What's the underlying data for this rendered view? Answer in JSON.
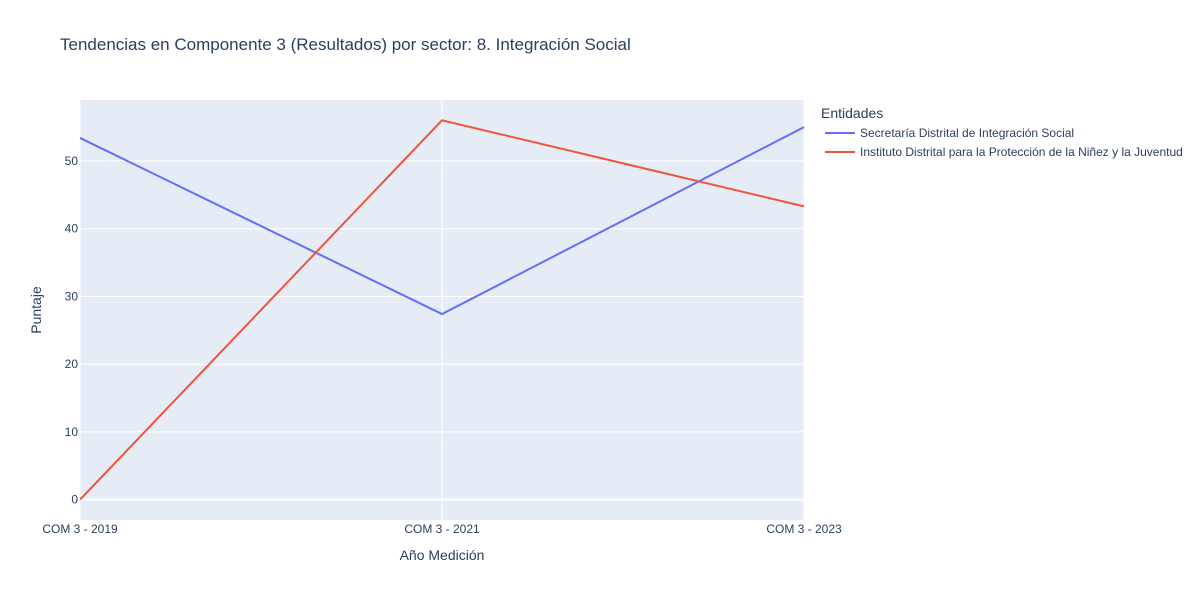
{
  "chart_data": {
    "type": "line",
    "title": "Tendencias en Componente 3 (Resultados) por sector: 8. Integración Social",
    "xlabel": "Año Medición",
    "ylabel": "Puntaje",
    "categories": [
      "COM 3 - 2019",
      "COM 3 - 2021",
      "COM 3 - 2023"
    ],
    "y_ticks": [
      0,
      10,
      20,
      30,
      40,
      50
    ],
    "ylim": [
      -3,
      59
    ],
    "grid": true,
    "legend": {
      "title": "Entidades",
      "placement": "right"
    },
    "series": [
      {
        "name": "Secretaría Distrital de Integración Social",
        "color": "#636efa",
        "values": [
          53.4,
          27.4,
          55.0
        ]
      },
      {
        "name": "Instituto Distrital para la Protección de la Niñez y la Juventud",
        "color": "#ef553b",
        "values": [
          0.0,
          56.0,
          43.3
        ]
      }
    ],
    "colors": {
      "plot_background": "#e5ecf6",
      "grid": "#ffffff",
      "text": "#2a3f5f"
    }
  }
}
